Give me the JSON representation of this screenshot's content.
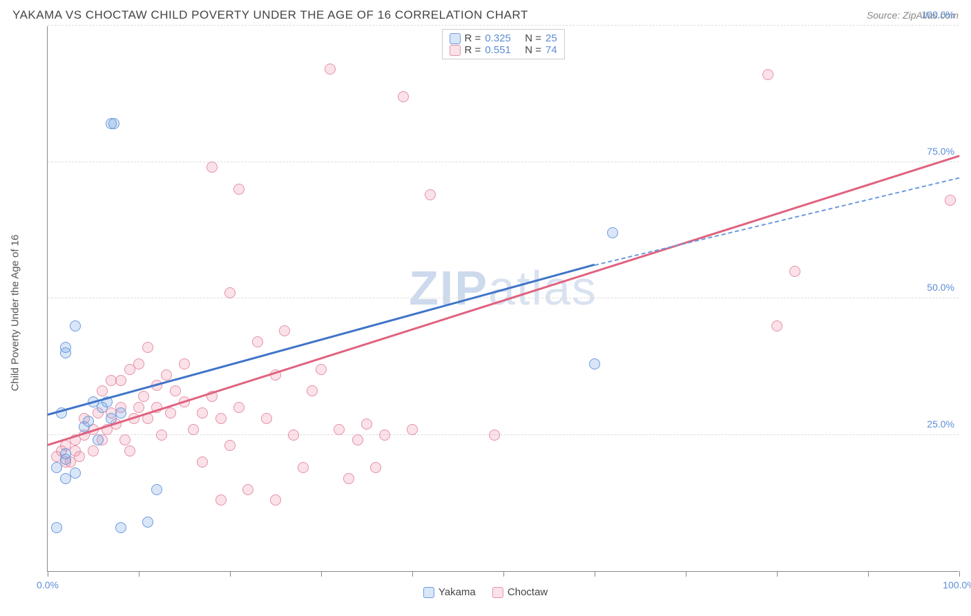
{
  "header": {
    "title": "YAKAMA VS CHOCTAW CHILD POVERTY UNDER THE AGE OF 16 CORRELATION CHART",
    "source": "Source: ZipAtlas.com"
  },
  "chart": {
    "type": "scatter",
    "ylabel": "Child Poverty Under the Age of 16",
    "xlim": [
      0,
      100
    ],
    "ylim": [
      0,
      100
    ],
    "x_ticks": [
      0,
      10,
      20,
      30,
      40,
      50,
      60,
      70,
      80,
      90,
      100
    ],
    "x_tick_labels": {
      "0": "0.0%",
      "100": "100.0%"
    },
    "y_gridlines": [
      25,
      50,
      75,
      100
    ],
    "y_tick_labels": {
      "25": "25.0%",
      "50": "50.0%",
      "75": "75.0%",
      "100": "100.0%"
    },
    "grid_color": "#dddddd",
    "axis_color": "#888888",
    "tick_label_color": "#5b8dd6",
    "background_color": "#ffffff",
    "point_radius": 8,
    "point_stroke_width": 1.5,
    "series": {
      "yakama": {
        "label": "Yakama",
        "fill": "rgba(120,165,225,0.28)",
        "stroke": "#6a9ade",
        "R": "0.325",
        "N": "25",
        "trend": {
          "x1": 0,
          "y1": 28.5,
          "x2": 60,
          "y2": 56,
          "color": "#3f74c8",
          "width": 2.5,
          "dash": false
        },
        "trend_ext": {
          "x1": 60,
          "y1": 56,
          "x2": 100,
          "y2": 72,
          "color": "#6a9ade",
          "width": 2,
          "dash": true
        },
        "points": [
          [
            1,
            19
          ],
          [
            2,
            20.5
          ],
          [
            2,
            17
          ],
          [
            2,
            21.5
          ],
          [
            1.5,
            29
          ],
          [
            2,
            40
          ],
          [
            2,
            41
          ],
          [
            3,
            45
          ],
          [
            3,
            18
          ],
          [
            4,
            26.5
          ],
          [
            4.5,
            27.5
          ],
          [
            5,
            31
          ],
          [
            5.5,
            24
          ],
          [
            6,
            30
          ],
          [
            6.5,
            31
          ],
          [
            7,
            82
          ],
          [
            7.3,
            82
          ],
          [
            8,
            8
          ],
          [
            7,
            28
          ],
          [
            8,
            29
          ],
          [
            12,
            15
          ],
          [
            11,
            9
          ],
          [
            1,
            8
          ],
          [
            60,
            38
          ],
          [
            62,
            62
          ]
        ]
      },
      "choctaw": {
        "label": "Choctaw",
        "fill": "rgba(235,140,165,0.25)",
        "stroke": "#e590a8",
        "R": "0.551",
        "N": "74",
        "trend": {
          "x1": 0,
          "y1": 23,
          "x2": 100,
          "y2": 76,
          "color": "#e0627f",
          "width": 2.5,
          "dash": false
        },
        "points": [
          [
            1,
            21
          ],
          [
            1.5,
            22
          ],
          [
            2,
            20
          ],
          [
            2,
            23
          ],
          [
            2.5,
            20
          ],
          [
            3,
            22
          ],
          [
            3,
            24
          ],
          [
            3.5,
            21
          ],
          [
            4,
            28
          ],
          [
            4,
            25
          ],
          [
            5,
            26
          ],
          [
            5,
            22
          ],
          [
            5.5,
            29
          ],
          [
            6,
            24
          ],
          [
            6,
            33
          ],
          [
            6.5,
            26
          ],
          [
            7,
            35
          ],
          [
            7,
            29
          ],
          [
            7.5,
            27
          ],
          [
            8,
            30
          ],
          [
            8,
            35
          ],
          [
            8.5,
            24
          ],
          [
            9,
            22
          ],
          [
            9,
            37
          ],
          [
            9.5,
            28
          ],
          [
            10,
            30
          ],
          [
            10,
            38
          ],
          [
            10.5,
            32
          ],
          [
            11,
            41
          ],
          [
            11,
            28
          ],
          [
            12,
            30
          ],
          [
            12,
            34
          ],
          [
            12.5,
            25
          ],
          [
            13,
            36
          ],
          [
            13.5,
            29
          ],
          [
            14,
            33
          ],
          [
            15,
            31
          ],
          [
            15,
            38
          ],
          [
            16,
            26
          ],
          [
            17,
            29
          ],
          [
            17,
            20
          ],
          [
            18,
            32
          ],
          [
            18,
            74
          ],
          [
            19,
            28
          ],
          [
            19,
            13
          ],
          [
            20,
            23
          ],
          [
            20,
            51
          ],
          [
            21,
            70
          ],
          [
            21,
            30
          ],
          [
            22,
            15
          ],
          [
            23,
            42
          ],
          [
            24,
            28
          ],
          [
            25,
            13
          ],
          [
            25,
            36
          ],
          [
            26,
            44
          ],
          [
            27,
            25
          ],
          [
            28,
            19
          ],
          [
            29,
            33
          ],
          [
            30,
            37
          ],
          [
            31,
            92
          ],
          [
            32,
            26
          ],
          [
            33,
            17
          ],
          [
            34,
            24
          ],
          [
            35,
            27
          ],
          [
            36,
            19
          ],
          [
            37,
            25
          ],
          [
            39,
            87
          ],
          [
            40,
            26
          ],
          [
            42,
            69
          ],
          [
            49,
            25
          ],
          [
            79,
            91
          ],
          [
            80,
            45
          ],
          [
            82,
            55
          ],
          [
            99,
            68
          ]
        ]
      }
    },
    "legend_top": [
      {
        "swatch_fill": "rgba(120,165,225,0.28)",
        "swatch_stroke": "#6a9ade",
        "R": "0.325",
        "N": "25"
      },
      {
        "swatch_fill": "rgba(235,140,165,0.25)",
        "swatch_stroke": "#e590a8",
        "R": "0.551",
        "N": "74"
      }
    ],
    "legend_bottom": [
      {
        "swatch_fill": "rgba(120,165,225,0.28)",
        "swatch_stroke": "#6a9ade",
        "label": "Yakama"
      },
      {
        "swatch_fill": "rgba(235,140,165,0.25)",
        "swatch_stroke": "#e590a8",
        "label": "Choctaw"
      }
    ],
    "watermark": {
      "bold": "ZIP",
      "light": "atlas"
    }
  }
}
